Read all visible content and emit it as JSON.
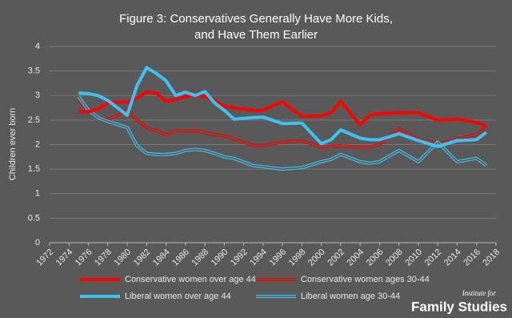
{
  "chart_data": {
    "type": "line",
    "title": "Figure 3: Conservatives Generally Have More Kids, and Have Them Earlier",
    "y_label": "Children ever born",
    "x": [
      1975,
      1976,
      1977,
      1978,
      1980,
      1981,
      1982,
      1983,
      1984,
      1985,
      1986,
      1987,
      1988,
      1989,
      1990,
      1991,
      1993,
      1994,
      1996,
      1998,
      2000,
      2001,
      2002,
      2004,
      2005,
      2006,
      2008,
      2010,
      2012,
      2014,
      2016,
      2017
    ],
    "series": [
      {
        "name": "Conservative women over age 44",
        "color": "#ff0000",
        "line_style": "solid",
        "values": [
          2.67,
          2.67,
          2.72,
          2.85,
          2.87,
          2.95,
          3.07,
          3.05,
          2.88,
          2.92,
          2.98,
          3.0,
          2.98,
          2.9,
          2.78,
          2.75,
          2.7,
          2.7,
          2.87,
          2.58,
          2.58,
          2.65,
          2.88,
          2.4,
          2.6,
          2.63,
          2.65,
          2.65,
          2.5,
          2.52,
          2.45,
          2.38
        ]
      },
      {
        "name": "Conservative women ages 30-44",
        "color": "#ff0000",
        "line_style": "double",
        "values": [
          2.9,
          2.7,
          2.55,
          2.5,
          2.7,
          2.5,
          2.35,
          2.28,
          2.2,
          2.28,
          2.28,
          2.28,
          2.25,
          2.2,
          2.18,
          2.12,
          1.98,
          1.98,
          2.05,
          2.08,
          1.95,
          1.97,
          1.97,
          1.95,
          1.95,
          2.0,
          2.33,
          2.1,
          2.02,
          2.12,
          2.2,
          2.38
        ]
      },
      {
        "name": "Liberal women over age 44",
        "color": "#3ec1f0",
        "line_style": "solid",
        "values": [
          3.05,
          3.04,
          3.0,
          2.9,
          2.6,
          3.2,
          3.57,
          3.45,
          3.3,
          3.0,
          3.07,
          3.0,
          3.08,
          2.85,
          2.7,
          2.52,
          2.55,
          2.56,
          2.43,
          2.44,
          2.02,
          2.1,
          2.3,
          2.13,
          2.1,
          2.1,
          2.22,
          2.08,
          1.96,
          2.08,
          2.1,
          2.25
        ]
      },
      {
        "name": "Liberal women age 30-44",
        "color": "#3ec1f0",
        "line_style": "double",
        "values": [
          2.98,
          2.7,
          2.55,
          2.47,
          2.35,
          1.98,
          1.82,
          1.8,
          1.8,
          1.82,
          1.88,
          1.9,
          1.88,
          1.82,
          1.75,
          1.72,
          1.57,
          1.55,
          1.5,
          1.53,
          1.65,
          1.7,
          1.8,
          1.65,
          1.62,
          1.65,
          1.88,
          1.65,
          2.05,
          1.65,
          1.72,
          1.57
        ]
      }
    ],
    "xlim": [
      1972,
      2018
    ],
    "xticks": [
      1972,
      1974,
      1976,
      1978,
      1980,
      1982,
      1984,
      1986,
      1988,
      1990,
      1992,
      1994,
      1996,
      1998,
      2000,
      2002,
      2004,
      2006,
      2008,
      2010,
      2012,
      2014,
      2016,
      2018
    ],
    "ylim": [
      0,
      4
    ],
    "yticks": [
      0,
      0.5,
      1,
      1.5,
      2,
      2.5,
      3,
      3.5,
      4
    ],
    "grid": true,
    "legend": "bottom"
  },
  "logo": {
    "small": "Institute for",
    "large": "Family Studies"
  }
}
